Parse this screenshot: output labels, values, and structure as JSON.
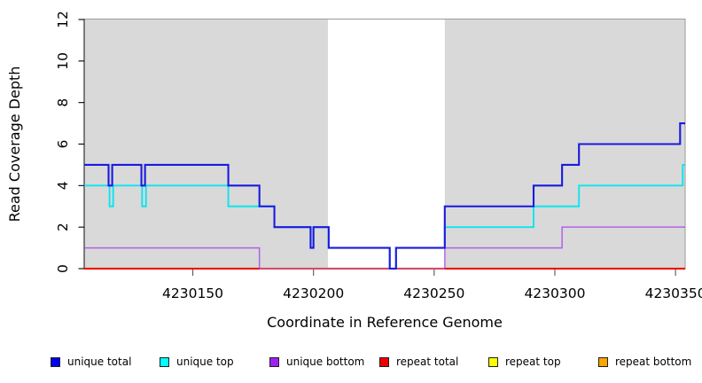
{
  "chart_data": {
    "type": "line",
    "step": true,
    "title": "",
    "xlabel": "Coordinate in Reference Genome",
    "ylabel": "Read Coverage Depth",
    "xlim": [
      4230105,
      4230354
    ],
    "ylim": [
      0,
      12
    ],
    "x_ticks": [
      4230150,
      4230200,
      4230250,
      4230300,
      4230350
    ],
    "y_ticks": [
      0,
      2,
      4,
      6,
      8,
      10,
      12
    ],
    "grid": false,
    "legend_position": "bottom",
    "plot_bg": "#ffffff",
    "frame_color": "#9a9a9a",
    "axis_line_color": "#333333",
    "shaded_regions": [
      {
        "name": "left-shaded-region",
        "x0": 4230105,
        "x1": 4230206,
        "color": "#d9d9d9"
      },
      {
        "name": "right-shaded-region",
        "x0": 4230254.4,
        "x1": 4230354,
        "color": "#d9d9d9"
      }
    ],
    "series": [
      {
        "name": "unique total",
        "color": "#1a1ae0",
        "width": 2.1,
        "opacity": 1,
        "points": [
          [
            4230105,
            5
          ],
          [
            4230115.1,
            4
          ],
          [
            4230116.6,
            5
          ],
          [
            4230128.7,
            4
          ],
          [
            4230130.2,
            5
          ],
          [
            4230164.7,
            4
          ],
          [
            4230177.6,
            3
          ],
          [
            4230183.8,
            2
          ],
          [
            4230198.8,
            1
          ],
          [
            4230200,
            2
          ],
          [
            4230206.3,
            1
          ],
          [
            4230231.6,
            0
          ],
          [
            4230234.2,
            1
          ],
          [
            4230254.4,
            3
          ],
          [
            4230291.2,
            4
          ],
          [
            4230303,
            5
          ],
          [
            4230310,
            6
          ],
          [
            4230351.9,
            7
          ],
          [
            4230354,
            7
          ]
        ]
      },
      {
        "name": "unique top",
        "color": "#00e6f0",
        "width": 1.9,
        "opacity": 0.95,
        "points": [
          [
            4230105,
            4
          ],
          [
            4230115.5,
            3
          ],
          [
            4230117,
            4
          ],
          [
            4230129,
            3
          ],
          [
            4230130.6,
            4
          ],
          [
            4230164.7,
            3
          ],
          [
            4230183.8,
            2
          ],
          [
            4230198.8,
            1
          ],
          [
            4230200,
            2
          ],
          [
            4230206.3,
            1
          ],
          [
            4230231.6,
            0
          ],
          [
            4230234.2,
            1
          ],
          [
            4230254.4,
            2
          ],
          [
            4230291.2,
            3
          ],
          [
            4230310,
            4
          ],
          [
            4230353,
            5
          ],
          [
            4230354,
            5
          ]
        ]
      },
      {
        "name": "unique bottom",
        "color": "#a020f0",
        "width": 1.5,
        "opacity": 0.65,
        "points": [
          [
            4230105,
            1
          ],
          [
            4230177.6,
            0
          ],
          [
            4230254.4,
            1
          ],
          [
            4230303,
            2
          ],
          [
            4230354,
            2
          ]
        ]
      },
      {
        "name": "repeat total",
        "color": "#ee0000",
        "width": 2,
        "opacity": 1,
        "points": [
          [
            4230105,
            0
          ],
          [
            4230354,
            0
          ]
        ]
      },
      {
        "name": "repeat top",
        "color": "#ffff00",
        "width": 2,
        "opacity": 1,
        "points": [
          [
            4230105,
            0
          ],
          [
            4230354,
            0
          ]
        ]
      },
      {
        "name": "repeat bottom",
        "color": "#ffa500",
        "width": 2.2,
        "opacity": 1,
        "points": [
          [
            4230105,
            0
          ],
          [
            4230354,
            0
          ]
        ]
      }
    ],
    "overlap_blend": {
      "after_series": "unique bottom",
      "x0": 4230177.6,
      "x1": 4230254.4,
      "y": 0,
      "color": "#d2557b",
      "width": 1.7
    }
  },
  "legend": {
    "items": [
      {
        "label": "unique total",
        "color": "#0000ee"
      },
      {
        "label": "unique top",
        "color": "#00ffff"
      },
      {
        "label": "unique bottom",
        "color": "#a020f0"
      },
      {
        "label": "repeat total",
        "color": "#ee0000"
      },
      {
        "label": "repeat top",
        "color": "#ffff00"
      },
      {
        "label": "repeat bottom",
        "color": "#ffa500"
      }
    ]
  }
}
